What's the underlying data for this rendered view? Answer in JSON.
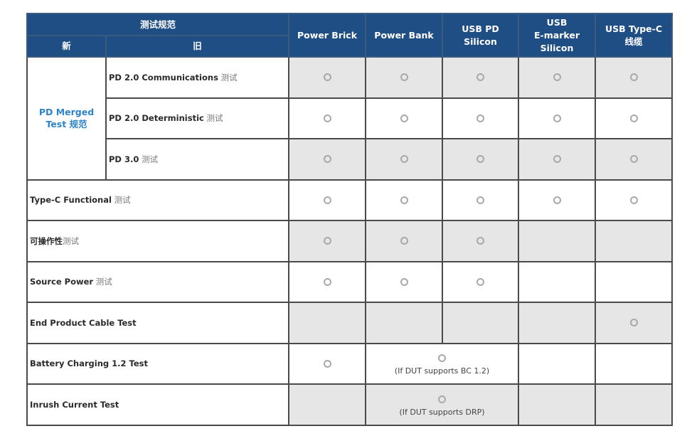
{
  "header": {
    "spec_group": "测试规范",
    "new_label": "新",
    "old_label": "旧",
    "columns": [
      "Power Brick",
      "Power Bank",
      "USB PD\nSilicon",
      "USB\nE-marker\nSilicon",
      "USB Type-C\n线缆"
    ]
  },
  "merged_group": {
    "label": "PD Merged\nTest 规范"
  },
  "rows": [
    {
      "label": "PD 2.0 Communications",
      "suffix": " 测试",
      "in_group": true,
      "shade": "gray",
      "cells": [
        {
          "mark": true
        },
        {
          "mark": true
        },
        {
          "mark": true
        },
        {
          "mark": true
        },
        {
          "mark": true
        }
      ]
    },
    {
      "label": "PD 2.0 Deterministic",
      "suffix": " 测试",
      "in_group": true,
      "shade": "white",
      "cells": [
        {
          "mark": true
        },
        {
          "mark": true
        },
        {
          "mark": true
        },
        {
          "mark": true
        },
        {
          "mark": true
        }
      ]
    },
    {
      "label": "PD 3.0",
      "suffix": " 测试",
      "in_group": true,
      "shade": "gray",
      "cells": [
        {
          "mark": true
        },
        {
          "mark": true
        },
        {
          "mark": true
        },
        {
          "mark": true
        },
        {
          "mark": true
        }
      ]
    },
    {
      "label": "Type-C Functional",
      "suffix": " 测试",
      "shade": "white",
      "cells": [
        {
          "mark": true
        },
        {
          "mark": true
        },
        {
          "mark": true
        },
        {
          "mark": true
        },
        {
          "mark": true
        }
      ]
    },
    {
      "label": "可操作性",
      "suffix": "测试",
      "shade": "gray",
      "cells": [
        {
          "mark": true
        },
        {
          "mark": true
        },
        {
          "mark": true
        },
        {
          "mark": false
        },
        {
          "mark": false
        }
      ]
    },
    {
      "label": "Source Power",
      "suffix": " 测试",
      "shade": "white",
      "cells": [
        {
          "mark": true
        },
        {
          "mark": true
        },
        {
          "mark": true
        },
        {
          "mark": false
        },
        {
          "mark": false
        }
      ]
    },
    {
      "label": "End Product Cable Test",
      "suffix": "",
      "shade": "gray",
      "cells": [
        {
          "mark": false
        },
        {
          "mark": false
        },
        {
          "mark": false
        },
        {
          "mark": false
        },
        {
          "mark": true
        }
      ]
    },
    {
      "label": "Battery Charging 1.2 Test",
      "suffix": "",
      "shade": "white",
      "cells": [
        {
          "mark": true
        },
        {
          "mark": true,
          "span": 2,
          "note": "(If DUT supports BC 1.2)"
        },
        {
          "mark": false
        },
        {
          "mark": false
        }
      ]
    },
    {
      "label": "Inrush Current Test",
      "suffix": "",
      "shade": "gray",
      "cells": [
        {
          "mark": false
        },
        {
          "mark": true,
          "span": 2,
          "note": "(If DUT supports DRP)"
        },
        {
          "mark": false
        },
        {
          "mark": false
        }
      ]
    }
  ],
  "colors": {
    "header_bg": "#1f4e85",
    "group_text": "#2e84c6",
    "shaded_cell": "#e6e6e6",
    "mark": "#a9a9a9"
  }
}
